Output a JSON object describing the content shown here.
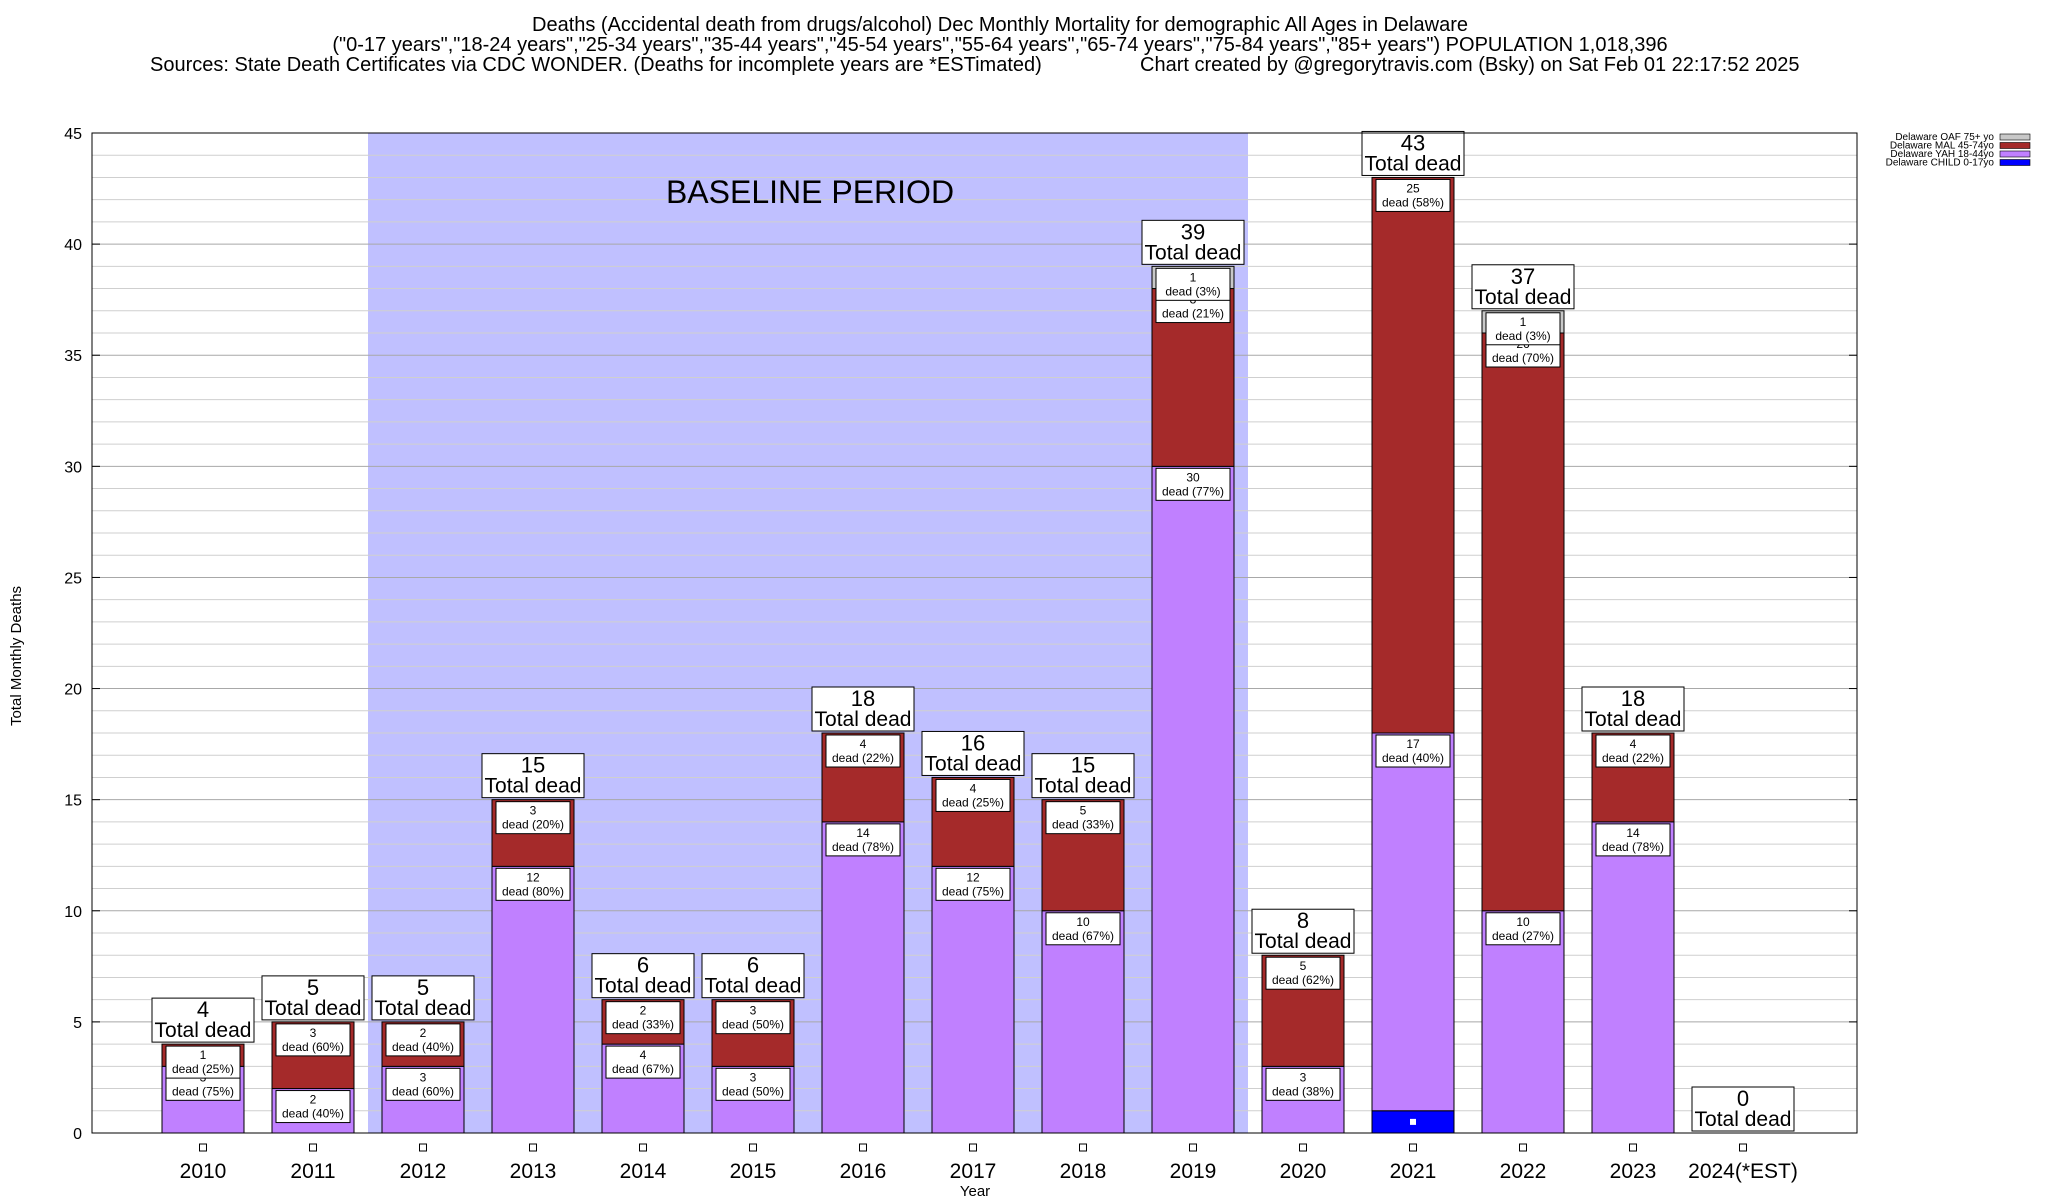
{
  "title_lines": [
    "Deaths (Accidental death from drugs/alcohol) Dec Monthly Mortality for demographic All Ages in Delaware",
    "(\"0-17 years\",\"18-24 years\",\"25-34 years\",\"35-44 years\",\"45-54 years\",\"55-64 years\",\"65-74 years\",\"75-84 years\",\"85+ years\") POPULATION 1,018,396",
    "Sources: State Death Certificates via CDC WONDER. (Deaths for incomplete years are *ESTimated)",
    "Chart created by @gregorytravis.com (Bsky) on Sat Feb 01 22:17:52 2025"
  ],
  "baseline_label": "BASELINE PERIOD",
  "total_word": "Total dead",
  "segment_word": "dead",
  "colors": {
    "oaf": "#c8c8c8",
    "mal": "#a52a2a",
    "yah": "#c080ff",
    "child": "#0000ff",
    "baseline": "#c0c0ff"
  },
  "chart_data": {
    "type": "bar",
    "stacked": true,
    "xlabel": "Year",
    "ylabel": "Total Monthly Deaths",
    "ylim": [
      0,
      45
    ],
    "yticks": [
      0,
      5,
      10,
      15,
      20,
      25,
      30,
      35,
      40,
      45
    ],
    "grid": true,
    "legend_position": "top-right",
    "categories": [
      "2010",
      "2011",
      "2012",
      "2013",
      "2014",
      "2015",
      "2016",
      "2017",
      "2018",
      "2019",
      "2020",
      "2021",
      "2022",
      "2023",
      "2024(*EST)"
    ],
    "baseline_period": [
      "2012",
      "2019"
    ],
    "series": [
      {
        "name": "Delaware CHILD 0-17yo",
        "key": "child",
        "values": [
          0,
          0,
          0,
          0,
          0,
          0,
          0,
          0,
          0,
          0,
          0,
          1,
          0,
          0,
          0
        ]
      },
      {
        "name": "Delaware YAH 18-44yo",
        "key": "yah",
        "values": [
          3,
          2,
          3,
          12,
          4,
          3,
          14,
          12,
          10,
          30,
          3,
          17,
          10,
          14,
          0
        ]
      },
      {
        "name": "Delaware MAL 45-74yo",
        "key": "mal",
        "values": [
          1,
          3,
          2,
          3,
          2,
          3,
          4,
          4,
          5,
          8,
          5,
          25,
          26,
          4,
          0
        ]
      },
      {
        "name": "Delaware OAF 75+ yo",
        "key": "oaf",
        "values": [
          0,
          0,
          0,
          0,
          0,
          0,
          0,
          0,
          0,
          1,
          0,
          0,
          1,
          0,
          0
        ]
      }
    ],
    "totals": [
      4,
      5,
      5,
      15,
      6,
      6,
      18,
      16,
      15,
      39,
      8,
      43,
      37,
      18,
      0
    ],
    "segment_labels": {
      "yah": [
        "(75%)",
        "(40%)",
        "(60%)",
        "(80%)",
        "(67%)",
        "(50%)",
        "(78%)",
        "(75%)",
        "(67%)",
        "(77%)",
        "(38%)",
        "(40%)",
        "(27%)",
        "(78%)",
        ""
      ],
      "mal": [
        "(25%)",
        "(60%)",
        "(40%)",
        "(20%)",
        "(33%)",
        "(50%)",
        "(22%)",
        "(25%)",
        "(33%)",
        "(21%)",
        "(62%)",
        "(58%)",
        "(70%)",
        "(22%)",
        ""
      ],
      "oaf": [
        "",
        "",
        "",
        "",
        "",
        "",
        "",
        "",
        "",
        "(3%)",
        "",
        "",
        "(3%)",
        "",
        ""
      ]
    },
    "legend_order": [
      "oaf",
      "mal",
      "yah",
      "child"
    ]
  }
}
